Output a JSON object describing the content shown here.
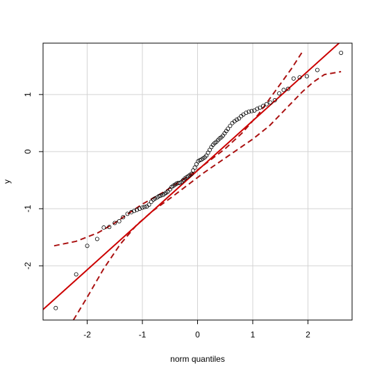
{
  "chart_data": {
    "type": "scatter",
    "title": "",
    "xlabel": "norm quantiles",
    "ylabel": "y",
    "xlim": [
      -2.8,
      2.8
    ],
    "ylim": [
      -2.95,
      1.9
    ],
    "grid": true,
    "xticks": [
      -2,
      -1,
      0,
      1,
      2
    ],
    "yticks": [
      -2,
      -1,
      0,
      1
    ],
    "colors": {
      "points": "#000000",
      "fit_line": "#cc0000",
      "envelope": "#aa1111",
      "grid": "#d3d3d3"
    },
    "fit_line": {
      "intercept": -0.33,
      "slope": 0.87
    },
    "envelope_upper": [
      [
        -2.6,
        -1.65
      ],
      [
        -2.2,
        -1.57
      ],
      [
        -1.8,
        -1.42
      ],
      [
        -1.5,
        -1.25
      ],
      [
        -1.2,
        -1.05
      ],
      [
        -1.0,
        -0.92
      ],
      [
        -0.6,
        -0.7
      ],
      [
        -0.2,
        -0.45
      ],
      [
        0.0,
        -0.32
      ],
      [
        0.2,
        -0.17
      ],
      [
        0.5,
        0.05
      ],
      [
        0.8,
        0.32
      ],
      [
        1.1,
        0.65
      ],
      [
        1.4,
        1.05
      ],
      [
        1.7,
        1.45
      ],
      [
        1.9,
        1.75
      ]
    ],
    "envelope_lower": [
      [
        -2.25,
        -2.95
      ],
      [
        -2.0,
        -2.55
      ],
      [
        -1.7,
        -2.05
      ],
      [
        -1.4,
        -1.62
      ],
      [
        -1.1,
        -1.28
      ],
      [
        -0.8,
        -1.03
      ],
      [
        -0.5,
        -0.82
      ],
      [
        -0.2,
        -0.6
      ],
      [
        0.1,
        -0.38
      ],
      [
        0.4,
        -0.18
      ],
      [
        0.7,
        0.02
      ],
      [
        1.0,
        0.22
      ],
      [
        1.3,
        0.45
      ],
      [
        1.6,
        0.75
      ],
      [
        1.9,
        1.05
      ],
      [
        2.1,
        1.22
      ],
      [
        2.3,
        1.35
      ],
      [
        2.6,
        1.4
      ]
    ],
    "points": [
      [
        -2.57,
        -2.74
      ],
      [
        -2.2,
        -2.15
      ],
      [
        -2.0,
        -1.65
      ],
      [
        -1.82,
        -1.53
      ],
      [
        -1.7,
        -1.33
      ],
      [
        -1.6,
        -1.32
      ],
      [
        -1.5,
        -1.25
      ],
      [
        -1.42,
        -1.22
      ],
      [
        -1.35,
        -1.15
      ],
      [
        -1.27,
        -1.09
      ],
      [
        -1.2,
        -1.06
      ],
      [
        -1.15,
        -1.04
      ],
      [
        -1.1,
        -1.02
      ],
      [
        -1.05,
        -1.0
      ],
      [
        -1.0,
        -0.98
      ],
      [
        -0.96,
        -0.97
      ],
      [
        -0.92,
        -0.96
      ],
      [
        -0.88,
        -0.93
      ],
      [
        -0.84,
        -0.88
      ],
      [
        -0.8,
        -0.84
      ],
      [
        -0.77,
        -0.82
      ],
      [
        -0.73,
        -0.8
      ],
      [
        -0.7,
        -0.78
      ],
      [
        -0.67,
        -0.77
      ],
      [
        -0.63,
        -0.76
      ],
      [
        -0.6,
        -0.74
      ],
      [
        -0.57,
        -0.72
      ],
      [
        -0.54,
        -0.7
      ],
      [
        -0.5,
        -0.66
      ],
      [
        -0.47,
        -0.62
      ],
      [
        -0.44,
        -0.6
      ],
      [
        -0.41,
        -0.58
      ],
      [
        -0.38,
        -0.56
      ],
      [
        -0.35,
        -0.55
      ],
      [
        -0.32,
        -0.55
      ],
      [
        -0.29,
        -0.53
      ],
      [
        -0.26,
        -0.5
      ],
      [
        -0.23,
        -0.47
      ],
      [
        -0.2,
        -0.45
      ],
      [
        -0.17,
        -0.43
      ],
      [
        -0.14,
        -0.41
      ],
      [
        -0.11,
        -0.39
      ],
      [
        -0.08,
        -0.33
      ],
      [
        -0.05,
        -0.28
      ],
      [
        -0.02,
        -0.22
      ],
      [
        0.01,
        -0.17
      ],
      [
        0.04,
        -0.15
      ],
      [
        0.07,
        -0.14
      ],
      [
        0.1,
        -0.12
      ],
      [
        0.13,
        -0.1
      ],
      [
        0.16,
        -0.07
      ],
      [
        0.19,
        -0.02
      ],
      [
        0.22,
        0.03
      ],
      [
        0.25,
        0.08
      ],
      [
        0.28,
        0.12
      ],
      [
        0.31,
        0.15
      ],
      [
        0.34,
        0.17
      ],
      [
        0.37,
        0.2
      ],
      [
        0.4,
        0.23
      ],
      [
        0.43,
        0.25
      ],
      [
        0.46,
        0.28
      ],
      [
        0.49,
        0.32
      ],
      [
        0.52,
        0.36
      ],
      [
        0.55,
        0.4
      ],
      [
        0.59,
        0.45
      ],
      [
        0.63,
        0.5
      ],
      [
        0.67,
        0.53
      ],
      [
        0.71,
        0.56
      ],
      [
        0.75,
        0.58
      ],
      [
        0.79,
        0.62
      ],
      [
        0.83,
        0.65
      ],
      [
        0.88,
        0.68
      ],
      [
        0.93,
        0.7
      ],
      [
        0.98,
        0.71
      ],
      [
        1.03,
        0.72
      ],
      [
        1.08,
        0.75
      ],
      [
        1.13,
        0.77
      ],
      [
        1.19,
        0.8
      ],
      [
        1.25,
        0.83
      ],
      [
        1.32,
        0.86
      ],
      [
        1.4,
        0.9
      ],
      [
        1.48,
        1.02
      ],
      [
        1.56,
        1.08
      ],
      [
        1.64,
        1.1
      ],
      [
        1.74,
        1.28
      ],
      [
        1.85,
        1.3
      ],
      [
        1.98,
        1.32
      ],
      [
        2.17,
        1.43
      ],
      [
        2.6,
        1.73
      ]
    ]
  }
}
